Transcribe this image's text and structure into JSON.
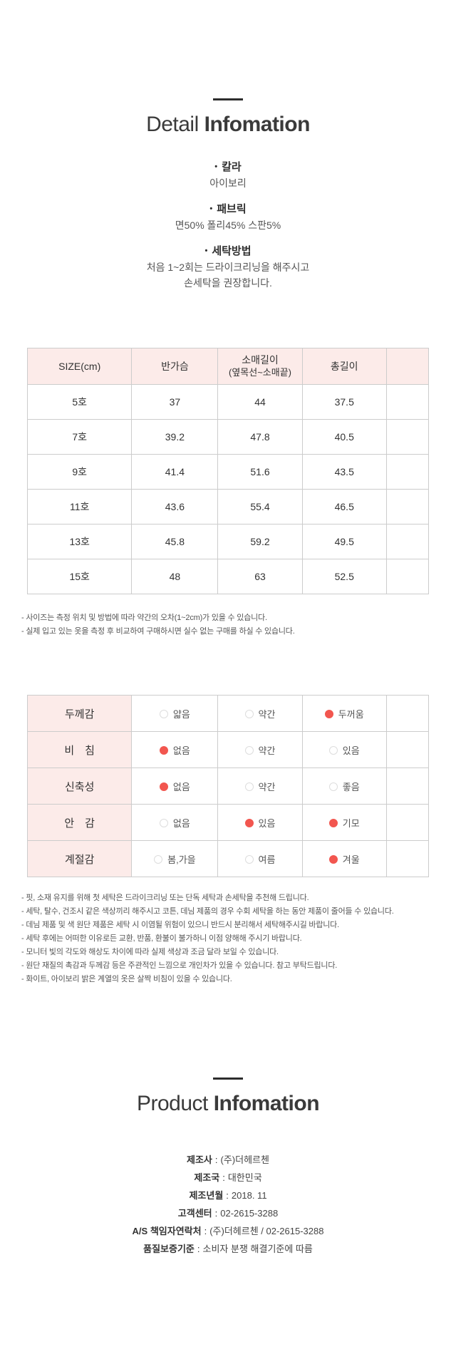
{
  "colors": {
    "accent_pink": "#fcebe9",
    "accent_red": "#f2564f",
    "border": "#cccccc",
    "text_dark": "#333333",
    "text_muted": "#555555"
  },
  "detail": {
    "title_light": "Detail",
    "title_bold": "Infomation",
    "bullet": "•",
    "specs": [
      {
        "label": "칼라",
        "lines": [
          "아이보리"
        ]
      },
      {
        "label": "패브릭",
        "lines": [
          "면50% 폴리45% 스판5%"
        ]
      },
      {
        "label": "세탁방법",
        "lines": [
          "처음 1~2회는 드라이크리닝을 해주시고",
          "손세탁을 권장합니다."
        ]
      }
    ]
  },
  "size_table": {
    "headers": {
      "col1": "SIZE(cm)",
      "col2": "반가슴",
      "col3_line1": "소매길이",
      "col3_line2": "(옆목선~소매끝)",
      "col4": "총길이"
    },
    "rows": [
      {
        "size": "5호",
        "values": [
          "37",
          "44",
          "37.5"
        ]
      },
      {
        "size": "7호",
        "values": [
          "39.2",
          "47.8",
          "40.5"
        ]
      },
      {
        "size": "9호",
        "values": [
          "41.4",
          "51.6",
          "43.5"
        ]
      },
      {
        "size": "11호",
        "values": [
          "43.6",
          "55.4",
          "46.5"
        ]
      },
      {
        "size": "13호",
        "values": [
          "45.8",
          "59.2",
          "49.5"
        ]
      },
      {
        "size": "15호",
        "values": [
          "48",
          "63",
          "52.5"
        ]
      }
    ]
  },
  "size_notes": [
    "- 사이즈는 측정 위치 및 방법에 따라 약간의 오차(1~2cm)가 있을 수 있습니다.",
    "- 실제 입고 있는 옷을 측정 후 비교하여 구매하시면 실수 없는 구매를 하실 수 있습니다."
  ],
  "care_table": {
    "rows": [
      {
        "label": "두께감",
        "options": [
          {
            "text": "얇음",
            "state": "off"
          },
          {
            "text": "약간",
            "state": "off"
          },
          {
            "text": "두꺼움",
            "state": "on"
          }
        ]
      },
      {
        "label": "비　침",
        "options": [
          {
            "text": "없음",
            "state": "on"
          },
          {
            "text": "약간",
            "state": "off"
          },
          {
            "text": "있음",
            "state": "off"
          }
        ]
      },
      {
        "label": "신축성",
        "options": [
          {
            "text": "없음",
            "state": "on"
          },
          {
            "text": "약간",
            "state": "off"
          },
          {
            "text": "좋음",
            "state": "off"
          }
        ]
      },
      {
        "label": "안　감",
        "options": [
          {
            "text": "없음",
            "state": "off"
          },
          {
            "text": "있음",
            "state": "on"
          },
          {
            "text": "기모",
            "state": "on"
          }
        ]
      },
      {
        "label": "계절감",
        "options": [
          {
            "text": "봄,가을",
            "state": "off"
          },
          {
            "text": "여름",
            "state": "off"
          },
          {
            "text": "겨울",
            "state": "on"
          }
        ]
      }
    ]
  },
  "care_notes": [
    "- 핏, 소재 유지를 위해 첫 세탁은 드라이크리닝 또는 단독 세탁과 손세탁을 추천해 드립니다.",
    "- 세탁, 탈수, 건조시 같은 색상끼리 해주시고 코튼, 데님 제품의 경우 수회 세탁을 하는 동안 제품이 줄어들 수 있습니다.",
    "- 데님 제품 및 색 원단 제품은 세탁 시 이염될 위험이 있으니 반드시 분리해서 세탁해주시길 바랍니다.",
    "- 세탁 후에는 어떠한 이유로든 교환, 반품, 환불이 불가하니 이점 양해해 주시기 바랍니다.",
    "- 모니터 빛의 각도와 해상도 차이에 따라 실제 색상과 조금 달라 보일 수 있습니다.",
    "- 원단 재질의 촉감과 두께감 등은 주관적인 느낌으로 개인차가 있을 수 있습니다. 참고 부탁드립니다.",
    "- 화이트, 아이보리 밝은 계열의 옷은 살짝 비침이 있을 수 있습니다."
  ],
  "product": {
    "title_light": "Product",
    "title_bold": "Infomation",
    "separator": ":",
    "rows": [
      {
        "label": "제조사",
        "value": "(주)더헤르첸"
      },
      {
        "label": "제조국",
        "value": "대한민국"
      },
      {
        "label": "제조년월",
        "value": "2018. 11"
      },
      {
        "label": "고객센터",
        "value": "02-2615-3288"
      },
      {
        "label": "A/S 책임자연락처",
        "value": "(주)더헤르첸 / 02-2615-3288"
      },
      {
        "label": "품질보증기준",
        "value": "소비자 분쟁 해결기준에 따름"
      }
    ]
  }
}
